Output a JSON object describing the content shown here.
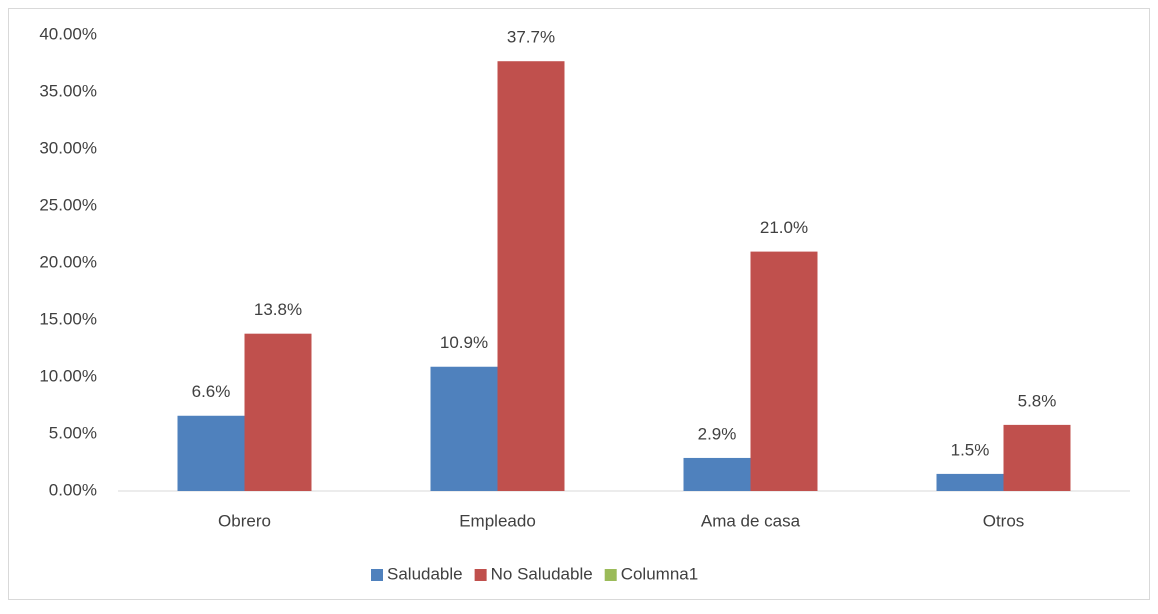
{
  "chart_data": {
    "type": "bar",
    "categories": [
      "Obrero",
      "Empleado",
      "Ama de casa",
      "Otros"
    ],
    "series": [
      {
        "name": "Saludable",
        "color": "#4f81bd",
        "values": [
          6.6,
          10.9,
          2.9,
          1.5
        ],
        "value_labels": [
          "6.6%",
          "10.9%",
          "2.9%",
          "1.5%"
        ]
      },
      {
        "name": "No Saludable",
        "color": "#c0504d",
        "values": [
          13.8,
          37.7,
          21.0,
          5.8
        ],
        "value_labels": [
          "13.8%",
          "37.7%",
          "21.0%",
          "5.8%"
        ]
      },
      {
        "name": "Columna1",
        "color": "#9bbb59",
        "values": [
          null,
          null,
          null,
          null
        ]
      }
    ],
    "ylim": [
      0,
      40
    ],
    "yticks": [
      {
        "value": 0,
        "label": "0.00%"
      },
      {
        "value": 5,
        "label": "5.00%"
      },
      {
        "value": 10,
        "label": "10.00%"
      },
      {
        "value": 15,
        "label": "15.00%"
      },
      {
        "value": 20,
        "label": "20.00%"
      },
      {
        "value": 25,
        "label": "25.00%"
      },
      {
        "value": 30,
        "label": "30.00%"
      },
      {
        "value": 35,
        "label": "35.00%"
      },
      {
        "value": 40,
        "label": "40.00%"
      }
    ],
    "grid": false,
    "legend": "bottom"
  }
}
